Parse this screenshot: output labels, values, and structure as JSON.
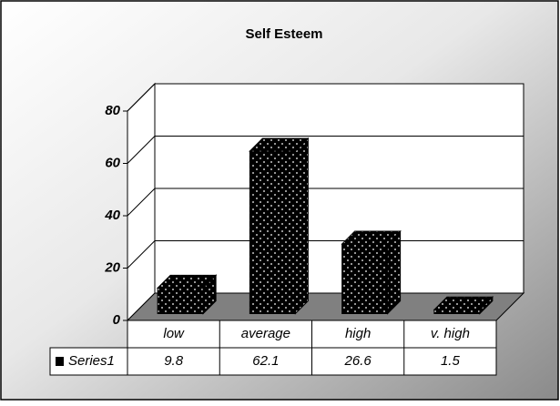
{
  "chart_data": {
    "type": "bar",
    "title": "Self Esteem",
    "categories": [
      "low",
      "average",
      "high",
      "v. high"
    ],
    "series": [
      {
        "name": "Series1",
        "color": "#000000",
        "values": [
          9.8,
          62.1,
          26.6,
          1.5
        ]
      }
    ],
    "ylim": [
      0,
      80
    ],
    "yticks": [
      0,
      20,
      40,
      60,
      80
    ],
    "grid": true,
    "legend": "table"
  }
}
